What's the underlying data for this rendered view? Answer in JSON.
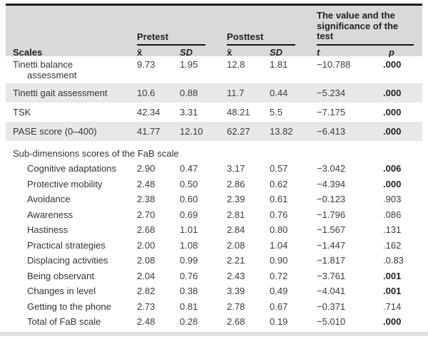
{
  "table": {
    "header": {
      "scales": "Scales",
      "pretest": "Pretest",
      "posttest": "Posttest",
      "test": "The value and the significance of the test",
      "mean": "x̄",
      "sd": "SD",
      "t": "t",
      "p": "p"
    },
    "rows": [
      {
        "label": "Tinetti balance assessment",
        "pre_mean": "9.73",
        "pre_sd": "1.95",
        "post_mean": "12.8",
        "post_sd": "1.81",
        "t": "−10.788",
        "p": ".000",
        "sig": true,
        "shaded": false,
        "indent": false,
        "wrap": true
      },
      {
        "label": "Tinetti gait assessment",
        "pre_mean": "10.6",
        "pre_sd": "0.88",
        "post_mean": "11.7",
        "post_sd": "0.44",
        "t": "−5.234",
        "p": ".000",
        "sig": true,
        "shaded": true,
        "indent": false
      },
      {
        "label": "TSK",
        "pre_mean": "42.34",
        "pre_sd": "3.31",
        "post_mean": "48.21",
        "post_sd": "5.5",
        "t": "−7.175",
        "p": ".000",
        "sig": true,
        "shaded": false,
        "indent": false
      },
      {
        "label": "PASE score (0–400)",
        "pre_mean": "41.77",
        "pre_sd": "12.10",
        "post_mean": "62.27",
        "post_sd": "13.82",
        "t": "−6.413",
        "p": ".000",
        "sig": true,
        "shaded": true,
        "indent": false
      },
      {
        "label": "Sub-dimensions scores of the FaB scale",
        "section": true
      },
      {
        "label": "Cognitive adaptations",
        "pre_mean": "2.90",
        "pre_sd": "0.47",
        "post_mean": "3.17",
        "post_sd": "0.57",
        "t": "−3.042",
        "p": ".006",
        "sig": true,
        "shaded": false,
        "indent": true
      },
      {
        "label": "Protective mobility",
        "pre_mean": "2.48",
        "pre_sd": "0.50",
        "post_mean": "2.86",
        "post_sd": "0.62",
        "t": "−4.394",
        "p": ".000",
        "sig": true,
        "shaded": false,
        "indent": true
      },
      {
        "label": "Avoidance",
        "pre_mean": "2.38",
        "pre_sd": "0.60",
        "post_mean": "2.39",
        "post_sd": "0.61",
        "t": "−0.123",
        "p": ".903",
        "sig": false,
        "shaded": false,
        "indent": true
      },
      {
        "label": "Awareness",
        "pre_mean": "2.70",
        "pre_sd": "0.69",
        "post_mean": "2.81",
        "post_sd": "0.76",
        "t": "−1.796",
        "p": ".086",
        "sig": false,
        "shaded": false,
        "indent": true
      },
      {
        "label": "Hastiness",
        "pre_mean": "2.68",
        "pre_sd": "1.01",
        "post_mean": "2.84",
        "post_sd": "0.80",
        "t": "−1.567",
        "p": ".131",
        "sig": false,
        "shaded": false,
        "indent": true
      },
      {
        "label": "Practical strategies",
        "pre_mean": "2.00",
        "pre_sd": "1.08",
        "post_mean": "2.08",
        "post_sd": "1.04",
        "t": "−1.447",
        "p": ".162",
        "sig": false,
        "shaded": false,
        "indent": true
      },
      {
        "label": "Displacing activities",
        "pre_mean": "2.08",
        "pre_sd": "0.99",
        "post_mean": "2.21",
        "post_sd": "0.90",
        "t": "−1.817",
        "p": ".0.83",
        "sig": false,
        "shaded": false,
        "indent": true
      },
      {
        "label": "Being observant",
        "pre_mean": "2.04",
        "pre_sd": "0.76",
        "post_mean": "2.43",
        "post_sd": "0.72",
        "t": "−3.761",
        "p": ".001",
        "sig": true,
        "shaded": false,
        "indent": true
      },
      {
        "label": "Changes in level",
        "pre_mean": "2.82",
        "pre_sd": "0.38",
        "post_mean": "3.39",
        "post_sd": "0.49",
        "t": "−4.041",
        "p": ".001",
        "sig": true,
        "shaded": false,
        "indent": true
      },
      {
        "label": "Getting to the phone",
        "pre_mean": "2.73",
        "pre_sd": "0.81",
        "post_mean": "2.78",
        "post_sd": "0.67",
        "t": "−0.371",
        "p": ".714",
        "sig": false,
        "shaded": false,
        "indent": true
      },
      {
        "label": "Total of FaB scale",
        "pre_mean": "2.48",
        "pre_sd": "0.28",
        "post_mean": "2.68",
        "post_sd": "0.19",
        "t": "−5.010",
        "p": ".000",
        "sig": true,
        "shaded": false,
        "indent": true
      }
    ]
  }
}
